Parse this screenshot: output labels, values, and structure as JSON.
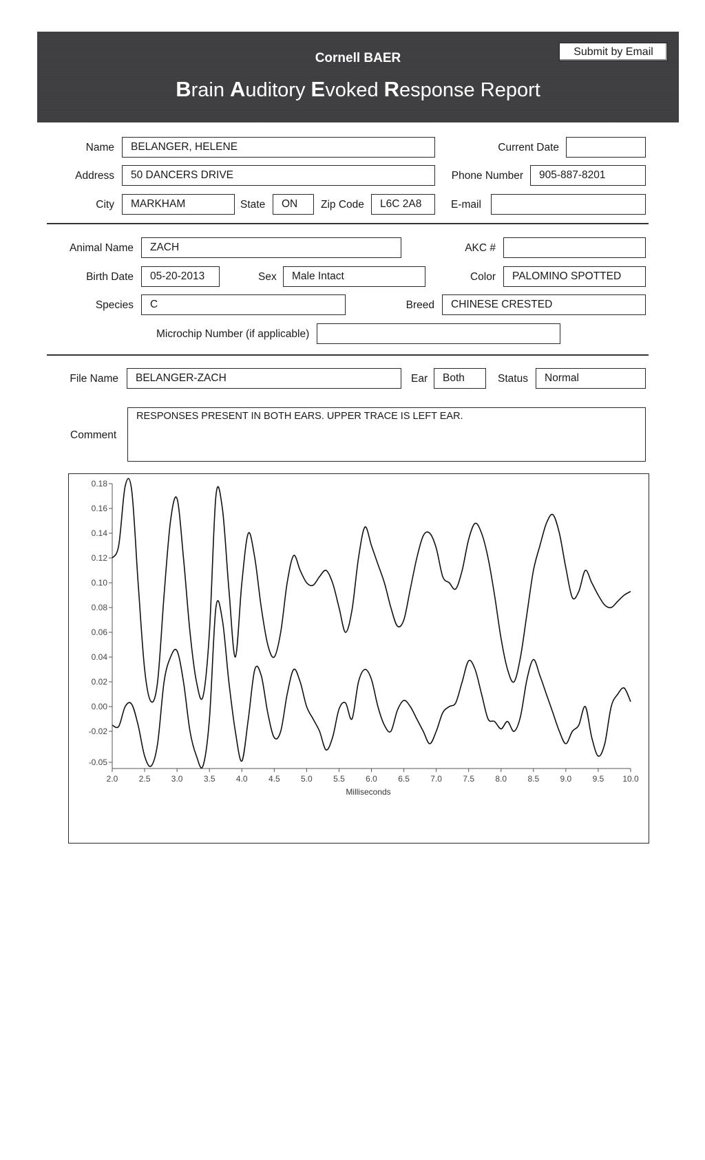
{
  "header": {
    "subtitle": "Cornell BAER",
    "title_parts": [
      {
        "cap": "B",
        "rest": "rain "
      },
      {
        "cap": "A",
        "rest": "uditory "
      },
      {
        "cap": "E",
        "rest": "voked "
      },
      {
        "cap": "R",
        "rest": "esponse Report"
      }
    ],
    "submit_label": "Submit by Email"
  },
  "owner": {
    "name_label": "Name",
    "name": "BELANGER, HELENE",
    "current_date_label": "Current Date",
    "current_date": "",
    "address_label": "Address",
    "address": "50 DANCERS DRIVE",
    "phone_label": "Phone Number",
    "phone": "905-887-8201",
    "city_label": "City",
    "city": "MARKHAM",
    "state_label": "State",
    "state": "ON",
    "zip_label": "Zip Code",
    "zip": "L6C 2A8",
    "email_label": "E-mail",
    "email": ""
  },
  "animal": {
    "name_label": "Animal Name",
    "name": "ZACH",
    "akc_label": "AKC #",
    "akc": "",
    "birth_label": "Birth Date",
    "birth": "05-20-2013",
    "sex_label": "Sex",
    "sex": "Male Intact",
    "color_label": "Color",
    "color": "PALOMINO SPOTTED",
    "species_label": "Species",
    "species": "C",
    "breed_label": "Breed",
    "breed": "CHINESE CRESTED",
    "microchip_label": "Microchip Number (if applicable)",
    "microchip": ""
  },
  "test": {
    "file_label": "File Name",
    "file": "BELANGER-ZACH",
    "ear_label": "Ear",
    "ear": "Both",
    "status_label": "Status",
    "status": "Normal",
    "comment_label": "Comment",
    "comment": "RESPONSES PRESENT IN BOTH EARS.  UPPER TRACE IS LEFT EAR."
  },
  "chart_data": {
    "type": "line",
    "title": "",
    "xlabel": "Milliseconds",
    "ylabel": "",
    "xlim": [
      2.0,
      10.0
    ],
    "ylim": [
      -0.05,
      0.18
    ],
    "x_ticks": [
      "2.0",
      "2.5",
      "3.0",
      "3.5",
      "4.0",
      "4.5",
      "5.0",
      "5.5",
      "6.0",
      "6.5",
      "7.0",
      "7.5",
      "8.0",
      "8.5",
      "9.0",
      "9.5",
      "10.0"
    ],
    "y_ticks": [
      "0.18",
      "0.16",
      "0.14",
      "0.12",
      "0.10",
      "0.08",
      "0.06",
      "0.04",
      "0.02",
      "0.00",
      "-0.02",
      "-0.05"
    ],
    "y_tick_values": [
      0.18,
      0.16,
      0.14,
      0.12,
      0.1,
      0.08,
      0.06,
      0.04,
      0.02,
      0.0,
      -0.02,
      -0.045
    ],
    "grid": false,
    "legend": "none",
    "series": [
      {
        "x": [
          2.0,
          2.1,
          2.2,
          2.3,
          2.4,
          2.5,
          2.6,
          2.7,
          2.8,
          2.9,
          3.0,
          3.1,
          3.2,
          3.3,
          3.4,
          3.5,
          3.6,
          3.7,
          3.8,
          3.9,
          4.0,
          4.1,
          4.2,
          4.3,
          4.4,
          4.5,
          4.6,
          4.7,
          4.8,
          4.9,
          5.0,
          5.1,
          5.2,
          5.3,
          5.4,
          5.5,
          5.6,
          5.7,
          5.8,
          5.9,
          6.0,
          6.1,
          6.2,
          6.3,
          6.4,
          6.5,
          6.6,
          6.7,
          6.8,
          6.9,
          7.0,
          7.1,
          7.2,
          7.3,
          7.4,
          7.5,
          7.6,
          7.7,
          7.8,
          7.9,
          8.0,
          8.1,
          8.2,
          8.3,
          8.4,
          8.5,
          8.6,
          8.7,
          8.8,
          8.9,
          9.0,
          9.1,
          9.2,
          9.3,
          9.4,
          9.5,
          9.6,
          9.7,
          9.8,
          9.9,
          10.0
        ],
        "y": [
          0.12,
          0.13,
          0.178,
          0.175,
          0.1,
          0.03,
          0.004,
          0.02,
          0.09,
          0.15,
          0.168,
          0.12,
          0.06,
          0.02,
          0.008,
          0.06,
          0.17,
          0.16,
          0.095,
          0.04,
          0.1,
          0.14,
          0.12,
          0.08,
          0.05,
          0.04,
          0.06,
          0.1,
          0.122,
          0.11,
          0.1,
          0.098,
          0.105,
          0.11,
          0.1,
          0.08,
          0.06,
          0.078,
          0.12,
          0.145,
          0.13,
          0.115,
          0.1,
          0.08,
          0.065,
          0.07,
          0.095,
          0.12,
          0.138,
          0.14,
          0.128,
          0.105,
          0.1,
          0.095,
          0.11,
          0.135,
          0.148,
          0.14,
          0.12,
          0.09,
          0.055,
          0.03,
          0.02,
          0.04,
          0.075,
          0.11,
          0.13,
          0.148,
          0.155,
          0.14,
          0.112,
          0.088,
          0.093,
          0.11,
          0.1,
          0.09,
          0.082,
          0.08,
          0.085,
          0.09,
          0.093
        ]
      },
      {
        "x": [
          2.0,
          2.1,
          2.2,
          2.3,
          2.4,
          2.5,
          2.6,
          2.7,
          2.8,
          2.9,
          3.0,
          3.1,
          3.2,
          3.3,
          3.4,
          3.5,
          3.6,
          3.7,
          3.8,
          3.9,
          4.0,
          4.1,
          4.2,
          4.3,
          4.4,
          4.5,
          4.6,
          4.7,
          4.8,
          4.9,
          5.0,
          5.1,
          5.2,
          5.3,
          5.4,
          5.5,
          5.6,
          5.7,
          5.8,
          5.9,
          6.0,
          6.1,
          6.2,
          6.3,
          6.4,
          6.5,
          6.6,
          6.7,
          6.8,
          6.9,
          7.0,
          7.1,
          7.2,
          7.3,
          7.4,
          7.5,
          7.6,
          7.7,
          7.8,
          7.9,
          8.0,
          8.1,
          8.2,
          8.3,
          8.4,
          8.5,
          8.6,
          8.7,
          8.8,
          8.9,
          9.0,
          9.1,
          9.2,
          9.3,
          9.4,
          9.5,
          9.6,
          9.7,
          9.8,
          9.9,
          10.0
        ],
        "y": [
          -0.015,
          -0.016,
          0.0,
          0.002,
          -0.015,
          -0.04,
          -0.048,
          -0.03,
          0.02,
          0.04,
          0.045,
          0.02,
          -0.02,
          -0.04,
          -0.048,
          -0.01,
          0.08,
          0.07,
          0.02,
          -0.02,
          -0.044,
          -0.01,
          0.03,
          0.025,
          -0.005,
          -0.025,
          -0.02,
          0.01,
          0.03,
          0.02,
          0.0,
          -0.01,
          -0.02,
          -0.035,
          -0.025,
          -0.002,
          0.003,
          -0.01,
          0.02,
          0.03,
          0.022,
          0.0,
          -0.015,
          -0.02,
          -0.003,
          0.005,
          0.0,
          -0.01,
          -0.02,
          -0.03,
          -0.02,
          -0.005,
          0.0,
          0.003,
          0.02,
          0.037,
          0.03,
          0.01,
          -0.01,
          -0.012,
          -0.018,
          -0.012,
          -0.02,
          -0.008,
          0.022,
          0.038,
          0.025,
          0.01,
          -0.005,
          -0.02,
          -0.03,
          -0.02,
          -0.015,
          0.0,
          -0.025,
          -0.04,
          -0.03,
          0.0,
          0.01,
          0.015,
          0.004
        ]
      }
    ]
  }
}
